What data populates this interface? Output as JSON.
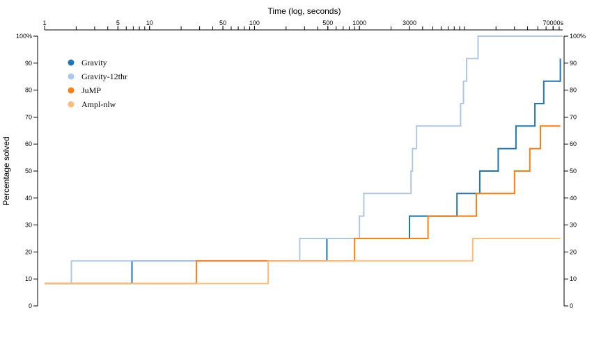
{
  "chart_data": {
    "type": "line",
    "step": true,
    "xscale": "log",
    "xlabel": "Time (log, seconds)",
    "ylabel": "Percentage solved",
    "xlim": [
      1,
      86400
    ],
    "ylim": [
      0,
      100
    ],
    "grid": false,
    "legend_position": "top-left",
    "x_ticks": [
      {
        "value": 1,
        "label": "1"
      },
      {
        "value": 5,
        "label": "5"
      },
      {
        "value": 10,
        "label": "10"
      },
      {
        "value": 50,
        "label": "50"
      },
      {
        "value": 100,
        "label": "100"
      },
      {
        "value": 500,
        "label": "500"
      },
      {
        "value": 1000,
        "label": "1000"
      },
      {
        "value": 3000,
        "label": "3000"
      },
      {
        "value": 70000,
        "label": "70000s"
      }
    ],
    "y_ticks": [
      {
        "value": 0,
        "label": "0"
      },
      {
        "value": 10,
        "label": "10"
      },
      {
        "value": 20,
        "label": "20"
      },
      {
        "value": 30,
        "label": "30"
      },
      {
        "value": 40,
        "label": "40"
      },
      {
        "value": 50,
        "label": "50"
      },
      {
        "value": 60,
        "label": "60"
      },
      {
        "value": 70,
        "label": "70"
      },
      {
        "value": 80,
        "label": "80"
      },
      {
        "value": 90,
        "label": "90"
      },
      {
        "value": 100,
        "label": "100%"
      }
    ],
    "series": [
      {
        "name": "Gravity",
        "color": "#1f77b4",
        "x": [
          1,
          6.8,
          490,
          3000,
          8500,
          14000,
          21000,
          31000,
          47000,
          57000,
          82000
        ],
        "y": [
          8.3,
          16.7,
          25,
          33.3,
          41.7,
          50,
          58.3,
          66.7,
          75,
          83.3,
          91.7
        ]
      },
      {
        "name": "Gravity-12thr",
        "color": "#aec7e8",
        "x": [
          1,
          1.8,
          270,
          1000,
          1100,
          3100,
          3200,
          3500,
          9200,
          9800,
          10500,
          13500,
          22000,
          86400
        ],
        "y": [
          8.3,
          16.7,
          25,
          33.3,
          41.7,
          50,
          58.3,
          66.7,
          75,
          83.3,
          91.7,
          100,
          100,
          100
        ]
      },
      {
        "name": "JuMP",
        "color": "#ff7f0e",
        "x": [
          1,
          28,
          900,
          4500,
          13000,
          30000,
          42000,
          53000,
          82000
        ],
        "y": [
          8.3,
          16.7,
          25,
          33.3,
          41.7,
          50,
          58.3,
          66.7,
          66.7
        ]
      },
      {
        "name": "Ampl-nlw",
        "color": "#ffbb78",
        "x": [
          1,
          135,
          12000,
          82000
        ],
        "y": [
          8.3,
          16.7,
          25,
          25
        ]
      }
    ]
  }
}
